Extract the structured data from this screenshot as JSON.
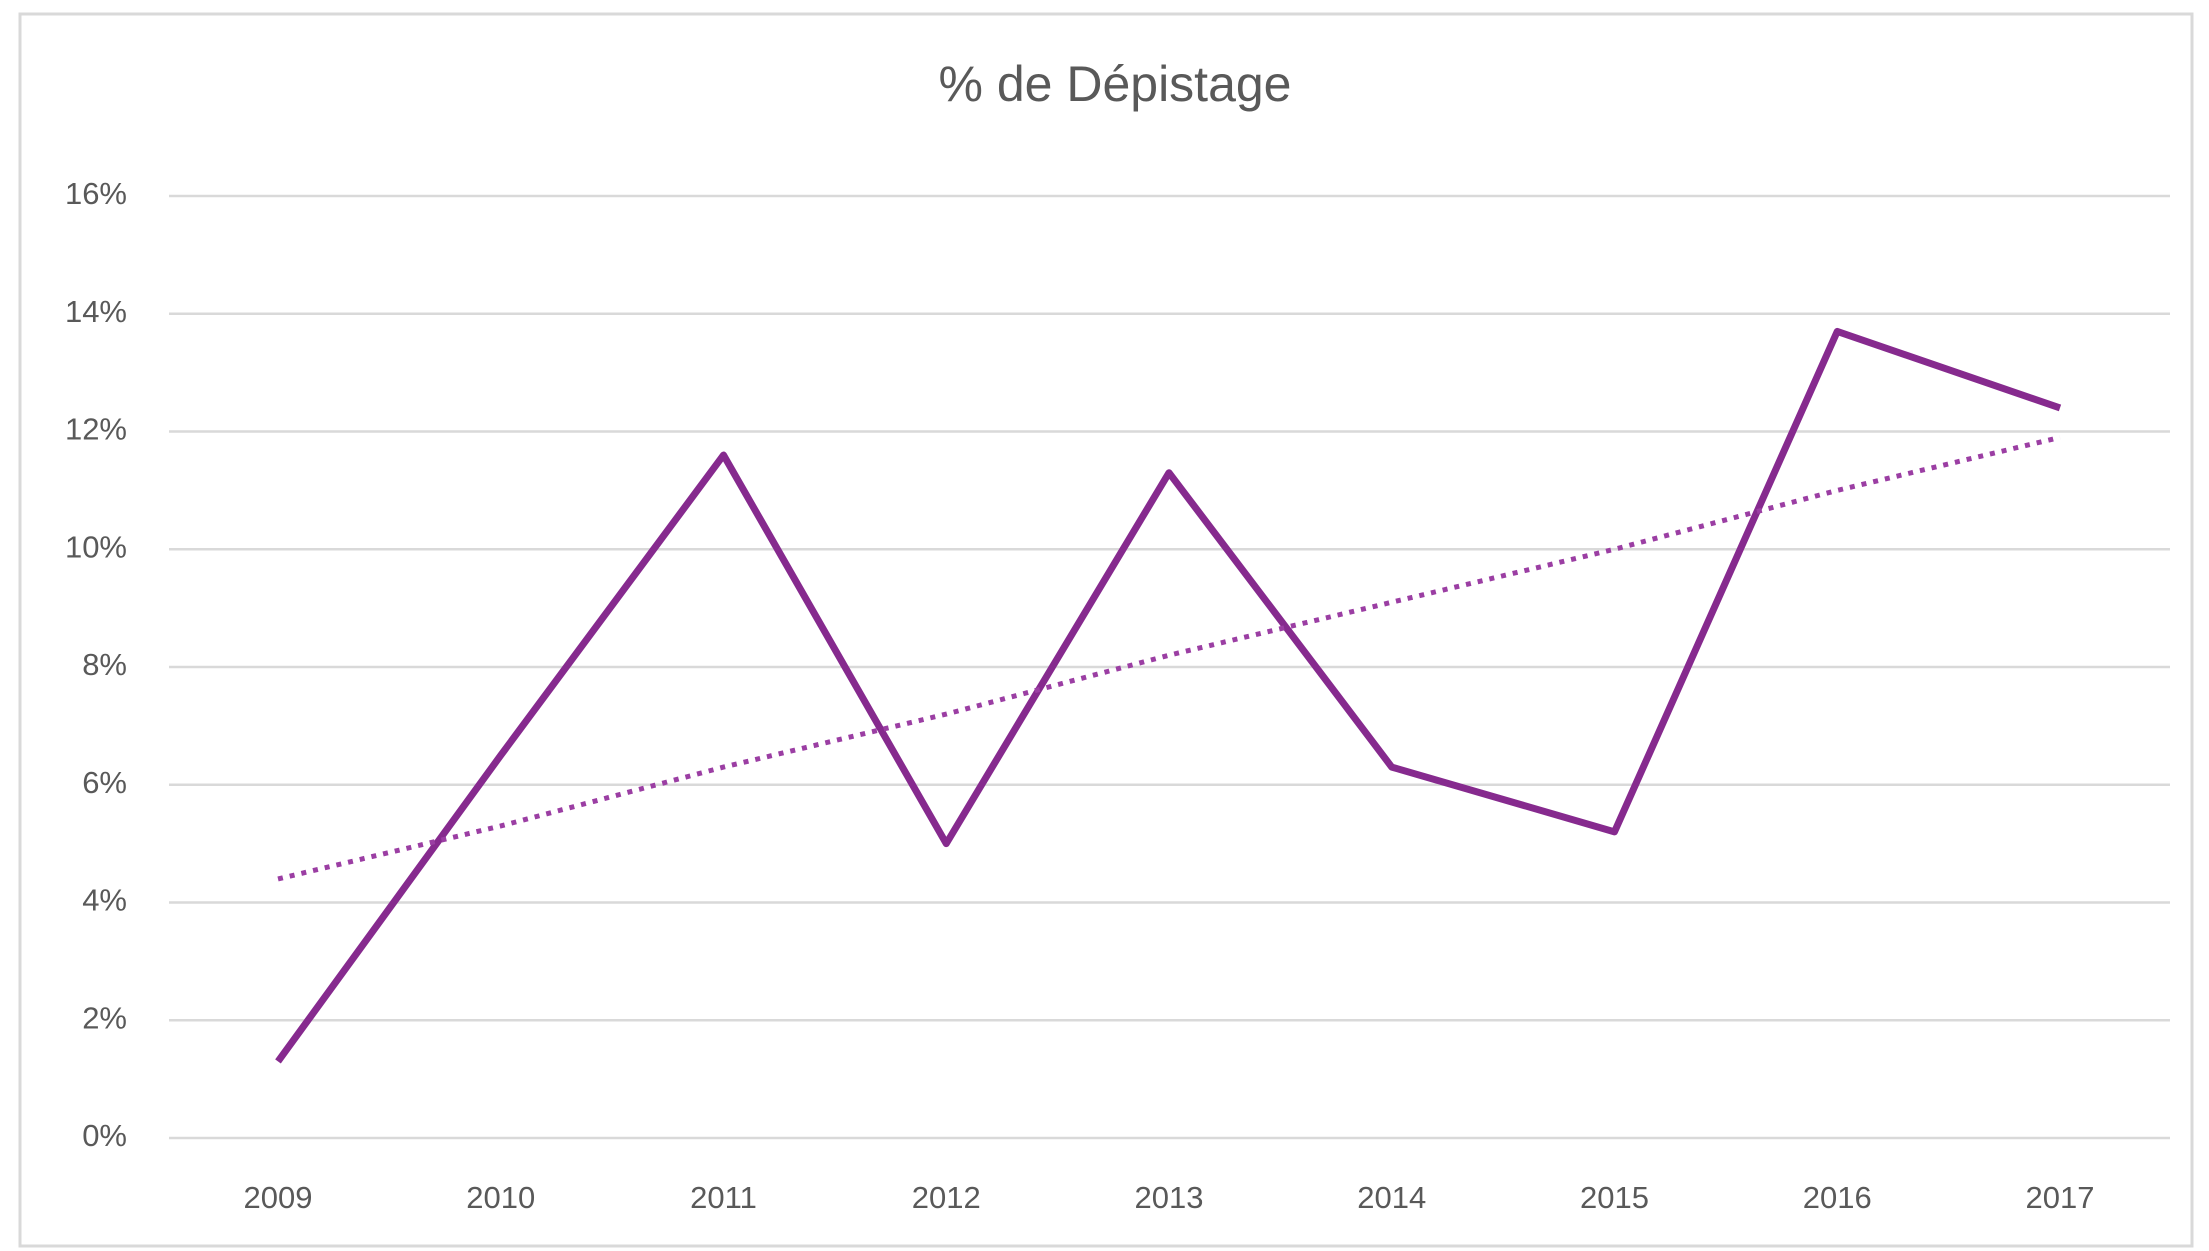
{
  "chart_data": {
    "type": "line",
    "title": "% de Dépistage",
    "categories": [
      "2009",
      "2010",
      "2011",
      "2012",
      "2013",
      "2014",
      "2015",
      "2016",
      "2017"
    ],
    "series": [
      {
        "color": "#862a8e",
        "style": "solid",
        "values": [
          1.3,
          6.5,
          11.6,
          5.0,
          11.3,
          6.3,
          5.2,
          13.7,
          12.4
        ]
      },
      {
        "color": "#9b3ea3",
        "style": "dotted",
        "values": [
          4.4,
          5.3,
          6.3,
          7.2,
          8.2,
          9.1,
          10.0,
          11.0,
          11.9
        ]
      }
    ],
    "ylim": [
      0,
      16
    ],
    "yticks": [
      {
        "value": 0,
        "label": "0%"
      },
      {
        "value": 2,
        "label": "2%"
      },
      {
        "value": 4,
        "label": "4%"
      },
      {
        "value": 6,
        "label": "6%"
      },
      {
        "value": 8,
        "label": "8%"
      },
      {
        "value": 10,
        "label": "10%"
      },
      {
        "value": 12,
        "label": "12%"
      },
      {
        "value": 14,
        "label": "14%"
      },
      {
        "value": 16,
        "label": "16%"
      }
    ],
    "grid": true
  }
}
